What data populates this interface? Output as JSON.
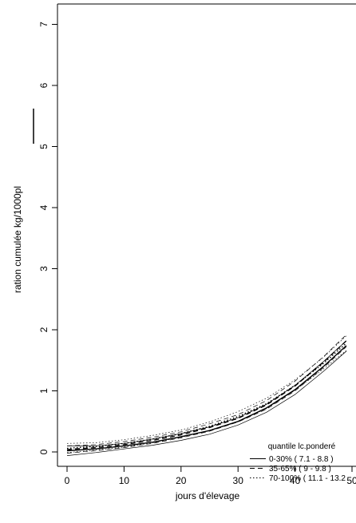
{
  "chart_data": {
    "type": "line",
    "xlabel": "jours d'élevage",
    "ylabel": "ration cumulée kg/1000pl",
    "xlim": [
      -1.5,
      50
    ],
    "ylim": [
      -0.3,
      7.4
    ],
    "x_ticks": [
      0,
      10,
      20,
      30,
      40,
      50
    ],
    "y_ticks": [
      0,
      1,
      2,
      3,
      4,
      5,
      6,
      7
    ],
    "grid": false,
    "legend": {
      "title": "quantile lc.ponderé",
      "placement": "bottom-right",
      "entries": [
        {
          "label": "0-30% ( 7.1 - 8.8 )",
          "style": "solid"
        },
        {
          "label": "35-65% ( 9 - 9.8 )",
          "style": "dashed"
        },
        {
          "label": "70-100% ( 11.1 - 13.2",
          "style": "dotted"
        }
      ]
    },
    "series": [
      {
        "style": "solid",
        "x": [
          0,
          5,
          10,
          15,
          20,
          25,
          30,
          35,
          40,
          45,
          49
        ],
        "y": [
          0.02,
          0.05,
          0.1,
          0.16,
          0.25,
          0.35,
          0.5,
          0.72,
          1.02,
          1.4,
          1.74
        ]
      },
      {
        "style": "dashed",
        "x": [
          0,
          5,
          10,
          15,
          20,
          25,
          30,
          35,
          40,
          45,
          49
        ],
        "y": [
          0.04,
          0.07,
          0.12,
          0.19,
          0.28,
          0.4,
          0.55,
          0.77,
          1.08,
          1.47,
          1.82
        ]
      },
      {
        "style": "dotted",
        "x": [
          0,
          5,
          10,
          15,
          20,
          25,
          30,
          35,
          40,
          45,
          49
        ],
        "y": [
          0.06,
          0.09,
          0.14,
          0.21,
          0.3,
          0.42,
          0.58,
          0.79,
          1.09,
          1.45,
          1.78
        ]
      }
    ],
    "bands": [
      {
        "style": "solid",
        "x": [
          0,
          5,
          10,
          15,
          20,
          25,
          30,
          35,
          40,
          45,
          49
        ],
        "lower": [
          -0.06,
          -0.01,
          0.05,
          0.11,
          0.19,
          0.29,
          0.44,
          0.65,
          0.94,
          1.32,
          1.65
        ],
        "upper": [
          0.1,
          0.1,
          0.14,
          0.21,
          0.3,
          0.41,
          0.56,
          0.78,
          1.09,
          1.48,
          1.82
        ]
      },
      {
        "style": "dashed",
        "x": [
          0,
          5,
          10,
          15,
          20,
          25,
          30,
          35,
          40,
          45,
          49
        ],
        "lower": [
          -0.02,
          0.02,
          0.07,
          0.14,
          0.23,
          0.34,
          0.49,
          0.7,
          1.0,
          1.38,
          1.72
        ],
        "upper": [
          0.1,
          0.12,
          0.17,
          0.24,
          0.33,
          0.46,
          0.61,
          0.84,
          1.16,
          1.56,
          1.92
        ]
      },
      {
        "style": "dotted",
        "x": [
          0,
          5,
          10,
          15,
          20,
          25,
          30,
          35,
          40,
          45,
          49
        ],
        "lower": [
          -0.01,
          0.03,
          0.08,
          0.15,
          0.24,
          0.35,
          0.5,
          0.71,
          1.01,
          1.36,
          1.66
        ],
        "upper": [
          0.14,
          0.15,
          0.2,
          0.27,
          0.36,
          0.49,
          0.66,
          0.88,
          1.18,
          1.55,
          1.9
        ]
      }
    ]
  }
}
